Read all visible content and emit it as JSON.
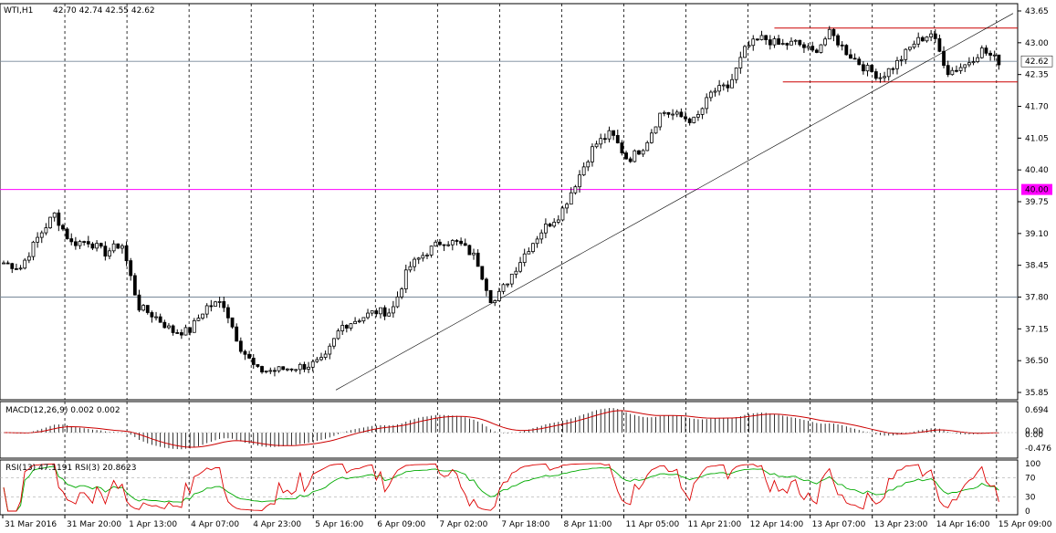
{
  "header": {
    "symbol": "WTI,H1",
    "ohlc": "42.70 42.74 42.55 42.62"
  },
  "macd_header": "MACD(12,26,9) 0.002 0.002",
  "rsi_header": "RSI(13) 47.1191  RSI(3) 20.8623",
  "chart_data": [
    {
      "type": "candlestick",
      "grid": "vertical dashed",
      "price_axis_ticks": [
        "43.65",
        "43.00",
        "42.35",
        "41.70",
        "41.05",
        "40.40",
        "39.75",
        "39.10",
        "38.45",
        "37.80",
        "37.15",
        "36.50",
        "35.85"
      ],
      "price_range": [
        35.85,
        43.65
      ],
      "current_price": "42.62",
      "level_label": "40.00",
      "level": 40.0,
      "support_line": 37.8,
      "range_top": 43.3,
      "range_bottom": 42.2,
      "trendline": [
        [
          15,
          35.9
        ],
        [
          96,
          43.6
        ]
      ],
      "time_labels": [
        "31 Mar 2016",
        "31 Mar 20:00",
        "1 Apr 13:00",
        "4 Apr 07:00",
        "4 Apr 23:00",
        "5 Apr 16:00",
        "6 Apr 09:00",
        "7 Apr 02:00",
        "7 Apr 18:00",
        "8 Apr 11:00",
        "11 Apr 05:00",
        "11 Apr 21:00",
        "12 Apr 14:00",
        "13 Apr 07:00",
        "13 Apr 23:00",
        "14 Apr 16:00",
        "15 Apr 09:00"
      ],
      "close_path": [
        38.5,
        38.4,
        39.0,
        39.5,
        38.9,
        38.95,
        38.7,
        38.9,
        37.6,
        37.4,
        37.1,
        37.1,
        37.6,
        37.7,
        36.8,
        36.3,
        36.3,
        36.35,
        36.4,
        36.5,
        37.2,
        37.35,
        37.5,
        37.5,
        38.4,
        38.7,
        38.95,
        38.9,
        38.6,
        37.65,
        38.2,
        38.75,
        39.2,
        39.5,
        40.2,
        40.9,
        41.15,
        40.6,
        40.9,
        41.6,
        41.5,
        41.4,
        42.0,
        42.1,
        42.9,
        43.1,
        42.95,
        43.0,
        42.8,
        43.2,
        42.8,
        42.5,
        42.3,
        42.6,
        43.0,
        43.2,
        42.4,
        42.55,
        42.85,
        42.62
      ],
      "macd_axis_ticks": [
        "0.694",
        "0.00",
        "0.00",
        "-0.476"
      ],
      "rsi_axis_ticks": [
        "100",
        "70",
        "30",
        "0"
      ]
    }
  ]
}
